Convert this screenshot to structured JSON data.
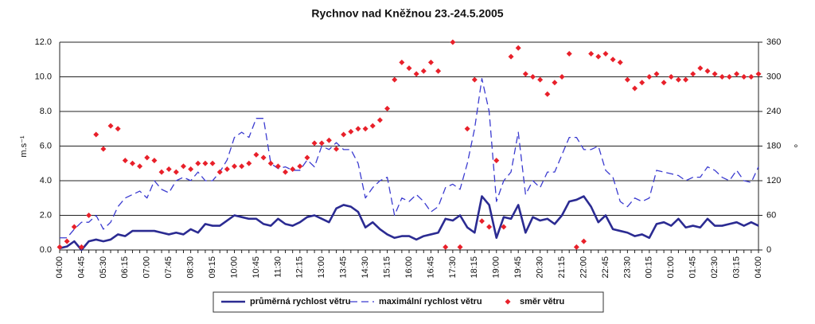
{
  "chart_data": {
    "type": "line",
    "title": "Rychnov nad Kněžnou 23.-24.5.2005",
    "y_label": "m.s⁻¹",
    "y2_label": "°",
    "categories": [
      "04:00",
      null,
      null,
      "04:45",
      null,
      null,
      "05:30",
      null,
      null,
      "06:15",
      null,
      null,
      "07:00",
      null,
      null,
      "07:45",
      null,
      null,
      "08:30",
      null,
      null,
      "09:15",
      null,
      null,
      "10:00",
      null,
      null,
      "10:45",
      null,
      null,
      "11:30",
      null,
      null,
      "12:15",
      null,
      null,
      "13:00",
      null,
      null,
      "13:45",
      null,
      null,
      "14:30",
      null,
      null,
      "15:15",
      null,
      null,
      "16:00",
      null,
      null,
      "16:45",
      null,
      null,
      "17:30",
      null,
      null,
      "18:15",
      null,
      null,
      "19:00",
      null,
      null,
      "19:45",
      null,
      null,
      "20:30",
      null,
      null,
      "21:15",
      null,
      null,
      "22:00",
      null,
      null,
      "22:45",
      null,
      null,
      "23:30",
      null,
      null,
      "00:15",
      null,
      null,
      "01:00",
      null,
      null,
      "01:45",
      null,
      null,
      "02:30",
      null,
      null,
      "03:15",
      null,
      null,
      "04:00"
    ],
    "ylim": [
      0,
      12
    ],
    "yticks": [
      {
        "value": 0,
        "label": "0.0"
      },
      {
        "value": 2,
        "label": "2.0"
      },
      {
        "value": 4,
        "label": "4.0"
      },
      {
        "value": 6,
        "label": "6.0"
      },
      {
        "value": 8,
        "label": "8.0"
      },
      {
        "value": 10,
        "label": "10.0"
      },
      {
        "value": 12,
        "label": "12.0"
      }
    ],
    "y2lim": [
      0,
      360
    ],
    "y2ticks": [
      0,
      60,
      120,
      180,
      240,
      300,
      360
    ],
    "grid": true,
    "legend": "bottom",
    "series": [
      {
        "name": "průměrná rychlost větru",
        "color": "#2b2b92",
        "dash": false,
        "mode": "line",
        "values": [
          0.1,
          0.2,
          0.5,
          0.0,
          0.5,
          0.6,
          0.5,
          0.6,
          0.9,
          0.8,
          1.1,
          1.1,
          1.1,
          1.1,
          1.0,
          0.9,
          1.0,
          0.9,
          1.2,
          1.0,
          1.5,
          1.4,
          1.4,
          1.7,
          2.0,
          1.9,
          1.8,
          1.8,
          1.5,
          1.4,
          1.8,
          1.5,
          1.4,
          1.6,
          1.9,
          2.0,
          1.8,
          1.6,
          2.4,
          2.6,
          2.5,
          2.2,
          1.3,
          1.6,
          1.2,
          0.9,
          0.7,
          0.8,
          0.8,
          0.6,
          0.8,
          0.9,
          1.0,
          1.8,
          1.7,
          2.0,
          1.3,
          1.0,
          3.1,
          2.6,
          0.7,
          1.9,
          1.8,
          2.6,
          1.0,
          1.9,
          1.7,
          1.8,
          1.5,
          2.0,
          2.8,
          2.9,
          3.1,
          2.5,
          1.6,
          2.0,
          1.2,
          1.1,
          1.0,
          0.8,
          0.9,
          0.7,
          1.5,
          1.6,
          1.4,
          1.8,
          1.3,
          1.4,
          1.3,
          1.8,
          1.4,
          1.4,
          1.5,
          1.6,
          1.4,
          1.6,
          1.4
        ]
      },
      {
        "name": "maximální rychlost větru",
        "color": "#3b3bd0",
        "dash": true,
        "mode": "line",
        "values": [
          0.7,
          0.7,
          1.2,
          1.6,
          1.6,
          2.0,
          1.2,
          1.6,
          2.5,
          3.0,
          3.2,
          3.4,
          3.0,
          4.0,
          3.5,
          3.3,
          4.0,
          4.2,
          4.0,
          4.5,
          4.0,
          4.0,
          4.5,
          5.2,
          6.5,
          6.8,
          6.5,
          7.6,
          7.6,
          5.0,
          4.7,
          4.8,
          4.6,
          4.6,
          5.2,
          4.8,
          6.0,
          5.8,
          6.2,
          5.8,
          5.8,
          5.0,
          3.0,
          3.6,
          4.0,
          4.2,
          2.0,
          3.0,
          2.8,
          3.2,
          2.8,
          2.2,
          2.5,
          3.6,
          3.8,
          3.5,
          5.0,
          7.0,
          9.9,
          8.0,
          2.8,
          4.0,
          4.5,
          6.8,
          3.2,
          4.0,
          3.6,
          4.5,
          4.5,
          5.5,
          6.5,
          6.5,
          5.8,
          5.8,
          6.0,
          4.6,
          4.2,
          2.8,
          2.5,
          3.0,
          2.8,
          3.0,
          4.6,
          4.5,
          4.4,
          4.3,
          4.0,
          4.2,
          4.2,
          4.8,
          4.6,
          4.2,
          4.0,
          4.6,
          4.0,
          3.9,
          4.8
        ]
      },
      {
        "name": "směr větru",
        "color": "#e8202a",
        "mode": "markers",
        "axis": "y2",
        "values": [
          5,
          15,
          40,
          5,
          60,
          200,
          175,
          215,
          210,
          155,
          150,
          145,
          160,
          155,
          135,
          140,
          135,
          145,
          140,
          150,
          150,
          150,
          135,
          140,
          145,
          145,
          150,
          165,
          160,
          150,
          145,
          135,
          140,
          145,
          160,
          185,
          185,
          190,
          175,
          200,
          205,
          210,
          210,
          215,
          225,
          245,
          295,
          325,
          315,
          305,
          310,
          325,
          310,
          5,
          360,
          5,
          210,
          295,
          50,
          40,
          155,
          40,
          335,
          350,
          305,
          300,
          295,
          270,
          290,
          300,
          340,
          5,
          15,
          340,
          335,
          340,
          330,
          325,
          295,
          280,
          290,
          300,
          305,
          290,
          300,
          295,
          295,
          305,
          315,
          310,
          305,
          300,
          300,
          305,
          300,
          300,
          305
        ]
      }
    ]
  }
}
